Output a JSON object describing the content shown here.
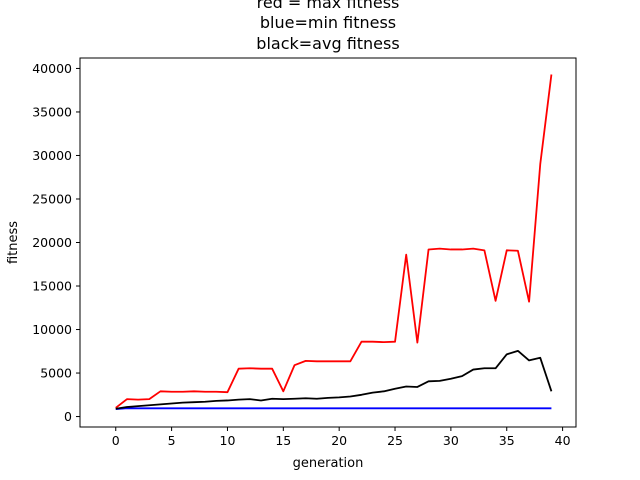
{
  "chart_data": {
    "type": "line",
    "title_lines": [
      "red = max fitness",
      "blue=min fitness",
      "black=avg fitness"
    ],
    "xlabel": "generation",
    "ylabel": "fitness",
    "xlim": [
      -3.2,
      41.2
    ],
    "ylim": [
      -1200,
      41200
    ],
    "xticks": [
      0,
      5,
      10,
      15,
      20,
      25,
      30,
      35,
      40
    ],
    "yticks": [
      0,
      5000,
      10000,
      15000,
      20000,
      25000,
      30000,
      35000,
      40000
    ],
    "x": [
      0,
      1,
      2,
      3,
      4,
      5,
      6,
      7,
      8,
      9,
      10,
      11,
      12,
      13,
      14,
      15,
      16,
      17,
      18,
      19,
      20,
      21,
      22,
      23,
      24,
      25,
      26,
      27,
      28,
      29,
      30,
      31,
      32,
      33,
      34,
      35,
      36,
      37,
      38,
      39
    ],
    "series": [
      {
        "color": "#ff0000",
        "values": [
          1000,
          2000,
          1950,
          2000,
          2900,
          2850,
          2850,
          2900,
          2850,
          2850,
          2800,
          5500,
          5550,
          5500,
          5500,
          2900,
          5900,
          6400,
          6350,
          6350,
          6350,
          6350,
          8600,
          8600,
          8550,
          8600,
          18600,
          8500,
          19200,
          19300,
          19200,
          19200,
          19300,
          19100,
          13300,
          19100,
          19050,
          13200,
          29000,
          39300
        ]
      },
      {
        "color": "#0000ff",
        "values": [
          850,
          950,
          950,
          950,
          950,
          950,
          950,
          950,
          950,
          950,
          950,
          950,
          950,
          950,
          950,
          950,
          950,
          950,
          950,
          950,
          950,
          950,
          950,
          950,
          950,
          950,
          950,
          950,
          950,
          950,
          950,
          950,
          950,
          950,
          950,
          950,
          950,
          950,
          950,
          950
        ]
      },
      {
        "color": "#000000",
        "values": [
          900,
          1100,
          1200,
          1300,
          1400,
          1500,
          1600,
          1650,
          1700,
          1800,
          1850,
          1950,
          2000,
          1850,
          2050,
          2000,
          2050,
          2100,
          2050,
          2150,
          2200,
          2300,
          2500,
          2750,
          2900,
          3200,
          3450,
          3400,
          4050,
          4100,
          4350,
          4650,
          5400,
          5550,
          5550,
          7150,
          7550,
          6450,
          6750,
          2900
        ]
      }
    ]
  }
}
